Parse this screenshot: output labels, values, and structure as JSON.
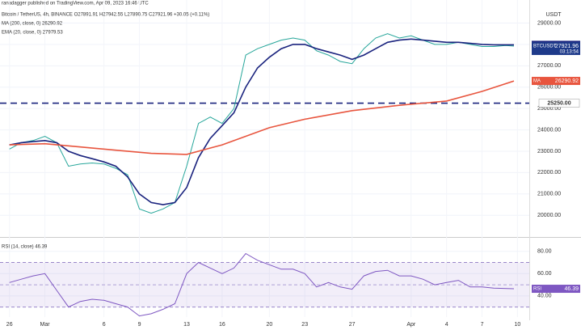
{
  "header": "ranadagger published on TradingView.com, Apr 09, 2023 16:46 UTC",
  "chart_data": [
    {
      "type": "line",
      "legend_lines": [
        "Bitcoin / TetherUS, 4h, BINANCE  O27891.91  H27942.55  L27890.75  C27921.96  +30.05 (+0.11%)",
        "MA (200, close, 0)  26290.92",
        "EMA (20, close, 0)  27979.53"
      ],
      "axis_unit": "USDT",
      "xlim": [
        -0.8,
        44
      ],
      "xticks": [
        {
          "value": 0,
          "label": "26"
        },
        {
          "value": 3,
          "label": "Mar"
        },
        {
          "value": 8,
          "label": "6"
        },
        {
          "value": 11,
          "label": "9"
        },
        {
          "value": 15,
          "label": "13"
        },
        {
          "value": 18,
          "label": "16"
        },
        {
          "value": 22,
          "label": "20"
        },
        {
          "value": 25,
          "label": "23"
        },
        {
          "value": 29,
          "label": "27"
        },
        {
          "value": 34,
          "label": "Apr"
        },
        {
          "value": 37,
          "label": "4"
        },
        {
          "value": 40,
          "label": "7"
        },
        {
          "value": 43,
          "label": "10"
        }
      ],
      "ylim": [
        19100,
        29700
      ],
      "yticks": [
        {
          "value": 20000,
          "label": "20000.00"
        },
        {
          "value": 21000,
          "label": "21000.00"
        },
        {
          "value": 22000,
          "label": "22000.00"
        },
        {
          "value": 23000,
          "label": "23000.00"
        },
        {
          "value": 24000,
          "label": "24000.00"
        },
        {
          "value": 25000,
          "label": "25000.00"
        },
        {
          "value": 26000,
          "label": "26000.00"
        },
        {
          "value": 27000,
          "label": "27000.00"
        },
        {
          "value": 28000,
          "label": "28000.00"
        },
        {
          "value": 29000,
          "label": "29000.00"
        }
      ],
      "series": [
        {
          "name": "BTCUSDT",
          "color": "#26a69a",
          "x": [
            0,
            1,
            2,
            3,
            4,
            5,
            6,
            7,
            8,
            9,
            10,
            11,
            12,
            13,
            14,
            15,
            16,
            17,
            18,
            19,
            20,
            21,
            22,
            23,
            24,
            25,
            26,
            27,
            28,
            29,
            30,
            31,
            32,
            33,
            34,
            35,
            36,
            37,
            38,
            39,
            40,
            41,
            42,
            42.7
          ],
          "values": [
            23100,
            23400,
            23500,
            23700,
            23400,
            22300,
            22400,
            22450,
            22400,
            22200,
            21900,
            20300,
            20100,
            20300,
            20600,
            22300,
            24300,
            24600,
            24300,
            25000,
            27500,
            27800,
            28000,
            28200,
            28300,
            28200,
            27700,
            27500,
            27200,
            27100,
            27800,
            28300,
            28500,
            28300,
            28400,
            28200,
            28000,
            28000,
            28100,
            28000,
            27900,
            27900,
            27950,
            27921.96
          ]
        },
        {
          "name": "EMA",
          "color": "#1a237e",
          "x": [
            0,
            1,
            2,
            3,
            4,
            5,
            6,
            7,
            8,
            9,
            10,
            11,
            12,
            13,
            14,
            15,
            16,
            17,
            18,
            19,
            20,
            21,
            22,
            23,
            24,
            25,
            26,
            27,
            28,
            29,
            30,
            31,
            32,
            33,
            34,
            35,
            36,
            37,
            38,
            39,
            40,
            41,
            42.7
          ],
          "values": [
            23300,
            23400,
            23450,
            23500,
            23400,
            23000,
            22800,
            22650,
            22500,
            22300,
            21800,
            21000,
            20600,
            20500,
            20600,
            21300,
            22700,
            23600,
            24200,
            24800,
            26000,
            26900,
            27400,
            27800,
            28000,
            28000,
            27800,
            27650,
            27500,
            27300,
            27500,
            27800,
            28100,
            28200,
            28250,
            28200,
            28150,
            28100,
            28100,
            28050,
            28000,
            27980,
            27979.53
          ]
        },
        {
          "name": "MA",
          "color": "#e8553e",
          "x": [
            0,
            3,
            6,
            9,
            12,
            15,
            18,
            22,
            25,
            29,
            33,
            37,
            40,
            42.7
          ],
          "values": [
            23300,
            23350,
            23200,
            23050,
            22900,
            22850,
            23300,
            24100,
            24500,
            24900,
            25150,
            25350,
            25800,
            26290.92
          ]
        }
      ],
      "levels": [
        {
          "value": 25250,
          "value_label": "25250.00",
          "color": "#1a237e"
        }
      ],
      "price_tags": [
        {
          "name": "EMA",
          "value": 27979.53,
          "color": "#1a237e"
        },
        {
          "name": "BTCUSDT",
          "value": 27921.96,
          "countdown": "03:13:54",
          "color": "#1e3a8a"
        },
        {
          "name": "MA",
          "value": 26290.92,
          "color": "#e8553e"
        }
      ]
    },
    {
      "type": "line",
      "legend_lines": [
        "RSI (14, close)  46.39"
      ],
      "xlim": [
        -0.8,
        44
      ],
      "ylim": [
        21,
        90
      ],
      "yticks": [
        {
          "value": 40,
          "label": "40.00"
        },
        {
          "value": 60,
          "label": "60.00"
        },
        {
          "value": 80,
          "label": "80.00"
        }
      ],
      "band": [
        30,
        70
      ],
      "midline": 50,
      "series": [
        {
          "name": "RSI",
          "color": "#7e57c2",
          "x": [
            0,
            1,
            2,
            3,
            4,
            5,
            6,
            7,
            8,
            9,
            10,
            11,
            12,
            13,
            14,
            15,
            16,
            17,
            18,
            19,
            20,
            21,
            22,
            23,
            24,
            25,
            26,
            27,
            28,
            29,
            30,
            31,
            32,
            33,
            34,
            35,
            36,
            37,
            38,
            39,
            40,
            41,
            42.7
          ],
          "values": [
            52,
            55,
            58,
            60,
            45,
            30,
            35,
            37,
            36,
            33,
            30,
            22,
            24,
            28,
            33,
            60,
            70,
            65,
            60,
            65,
            78,
            72,
            68,
            64,
            64,
            60,
            48,
            52,
            48,
            46,
            58,
            62,
            63,
            58,
            58,
            55,
            50,
            52,
            54,
            48,
            48,
            47,
            46.39
          ]
        }
      ],
      "price_tags": [
        {
          "name": "RSI",
          "value": 46.39,
          "color": "#7e57c2"
        }
      ]
    }
  ]
}
